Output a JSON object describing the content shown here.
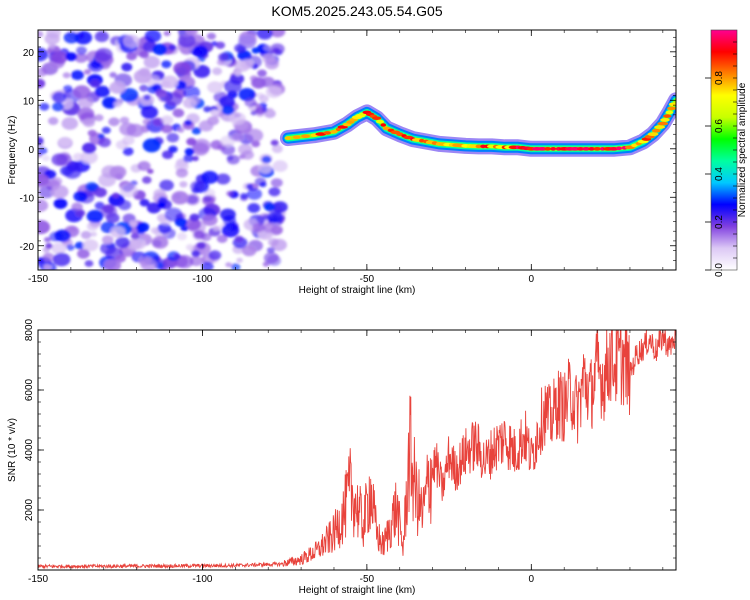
{
  "title": "KOM5.2025.243.05.54.G05",
  "chart_data": [
    {
      "type": "heatmap",
      "title": "KOM5.2025.243.05.54.G05",
      "xlabel": "Height of straight line (km)",
      "ylabel": "Frequency (Hz)",
      "xlim": [
        -150,
        44
      ],
      "ylim": [
        -25,
        24.5
      ],
      "xticks": [
        -150,
        -100,
        -50,
        0
      ],
      "xtick_labels": [
        "-150",
        "-100",
        "-50",
        "0"
      ],
      "yticks": [
        20,
        10,
        0,
        -10,
        -20
      ],
      "ytick_labels": [
        "20",
        "10",
        "0",
        "-10",
        "-20"
      ],
      "noise_region_x": [
        -150,
        -76
      ],
      "ridge": {
        "x": [
          -74,
          -66,
          -60,
          -56,
          -53,
          -50,
          -47,
          -44,
          -40,
          -36,
          -32,
          -28,
          -24,
          -20,
          -16,
          -12,
          -8,
          -4,
          0,
          5,
          10,
          15,
          20,
          25,
          30,
          34,
          37,
          40,
          42,
          44
        ],
        "y": [
          2.2,
          2.8,
          3.5,
          5,
          6.5,
          7.5,
          6.3,
          4.2,
          3,
          2,
          1.5,
          1,
          0.8,
          0.6,
          0.5,
          0.5,
          0.3,
          0.3,
          0,
          0,
          0,
          0,
          0,
          0,
          0.3,
          1.5,
          3,
          5.2,
          7.5,
          10
        ]
      },
      "colorbar": {
        "label": "Normalized spectral amplitude",
        "range": [
          0,
          1
        ],
        "ticks": [
          "0.0",
          "0.2",
          "0.4",
          "0.6",
          "0.8"
        ],
        "colors": [
          "#ffffff",
          "#dcc8f5",
          "#8040e0",
          "#0000ff",
          "#00c8ff",
          "#00ffa0",
          "#00ff00",
          "#c8ff00",
          "#ffff00",
          "#ff8000",
          "#ff0000",
          "#ff0090"
        ]
      }
    },
    {
      "type": "line",
      "xlabel": "Height of straight line (km)",
      "ylabel": "SNR (10 * v/v)",
      "xlim": [
        -150,
        44
      ],
      "ylim": [
        0,
        8000
      ],
      "xticks": [
        -150,
        -100,
        -50,
        0
      ],
      "xtick_labels": [
        "-150",
        "-100",
        "-50",
        "0"
      ],
      "yticks": [
        2000,
        4000,
        6000,
        8000
      ],
      "ytick_labels": [
        "2000",
        "4000",
        "6000",
        "8000"
      ],
      "series": [
        {
          "name": "SNR",
          "color": "#e8433c",
          "x": [
            -150,
            -120,
            -90,
            -76,
            -70,
            -65,
            -60,
            -57,
            -55,
            -53,
            -51,
            -49,
            -47,
            -45,
            -43,
            -41,
            -39,
            -37,
            -35,
            -33,
            -31,
            -29,
            -27,
            -25,
            -23,
            -20,
            -17,
            -14,
            -11,
            -8,
            -5,
            -2,
            0,
            2,
            4,
            6,
            8,
            10,
            12,
            14,
            16,
            18,
            20,
            22,
            24,
            26,
            28,
            30,
            32,
            34,
            36,
            38,
            40,
            42,
            44
          ],
          "y": [
            120,
            130,
            150,
            200,
            350,
            650,
            1200,
            1900,
            2700,
            2100,
            1500,
            2700,
            1200,
            800,
            1400,
            2100,
            700,
            4000,
            2500,
            1800,
            3100,
            3600,
            2700,
            3800,
            3300,
            3900,
            4200,
            3600,
            4100,
            4400,
            3900,
            4500,
            3700,
            4600,
            5300,
            5000,
            5600,
            5400,
            6000,
            5300,
            6400,
            5800,
            6700,
            6300,
            7100,
            6900,
            7000,
            6500,
            7200,
            7400,
            7700,
            7300,
            7800,
            7400,
            7800
          ]
        }
      ]
    }
  ]
}
